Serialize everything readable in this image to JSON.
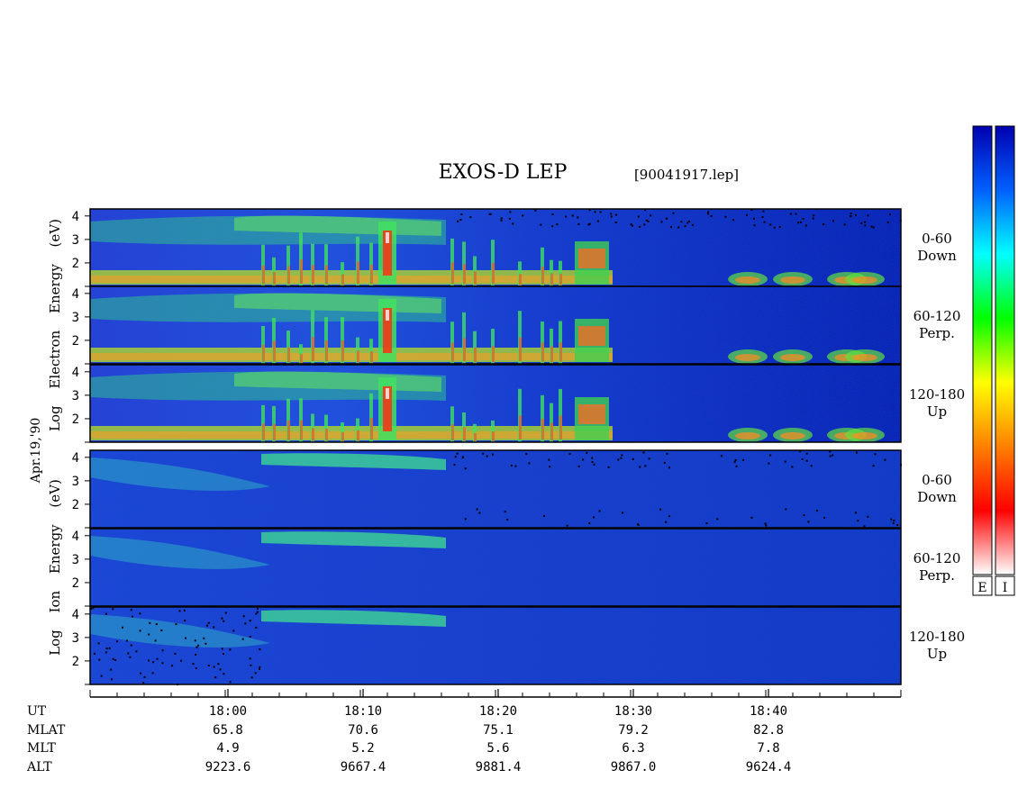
{
  "chart_data": {
    "type": "heatmap",
    "title": "EXOS-D LEP",
    "file_label": "[90041917.lep]",
    "date_label": "Apr.19,'90",
    "groups": [
      {
        "name": "Electron",
        "ylabel": "Log Electron Energy (eV)",
        "ylabel_words": [
          "Log",
          "Electron",
          "Energy",
          "(eV)"
        ],
        "panels": [
          {
            "label_top": "0-60",
            "label_bottom": "Down"
          },
          {
            "label_top": "60-120",
            "label_bottom": "Perp."
          },
          {
            "label_top": "120-180",
            "label_bottom": "Up"
          }
        ]
      },
      {
        "name": "Ion",
        "ylabel": "Log Ion Energy (eV)",
        "ylabel_words": [
          "Log",
          "Ion",
          "Energy",
          "(eV)"
        ],
        "panels": [
          {
            "label_top": "0-60",
            "label_bottom": "Down"
          },
          {
            "label_top": "60-120",
            "label_bottom": "Perp."
          },
          {
            "label_top": "120-180",
            "label_bottom": "Up"
          }
        ]
      }
    ],
    "y_ticks": [
      "4",
      "3",
      "2"
    ],
    "ylim": [
      1,
      4.3
    ],
    "x_range_minutes": [
      17.83,
      18.83
    ],
    "x_ticks": [
      "18:00",
      "18:10",
      "18:20",
      "18:30",
      "18:40"
    ],
    "x_tick_times": [
      18.0,
      18.1667,
      18.3333,
      18.5,
      18.6667
    ],
    "ephemeris": [
      {
        "label": "UT",
        "values": [
          "18:00",
          "18:10",
          "18:20",
          "18:30",
          "18:40"
        ]
      },
      {
        "label": "MLAT",
        "values": [
          "65.8",
          "70.6",
          "75.1",
          "79.2",
          "82.8"
        ]
      },
      {
        "label": "MLT",
        "values": [
          "4.9",
          "5.2",
          "5.6",
          "6.3",
          "7.8"
        ]
      },
      {
        "label": "ALT",
        "values": [
          "9223.6",
          "9667.4",
          "9881.4",
          "9867.0",
          "9624.4"
        ]
      }
    ],
    "colorbars": [
      {
        "label": "E"
      },
      {
        "label": "I"
      }
    ],
    "colormap": [
      "#ffffff",
      "#ff0000",
      "#ff8000",
      "#ffff00",
      "#00ff00",
      "#00ffff",
      "#0060ff",
      "#0000b0"
    ]
  }
}
